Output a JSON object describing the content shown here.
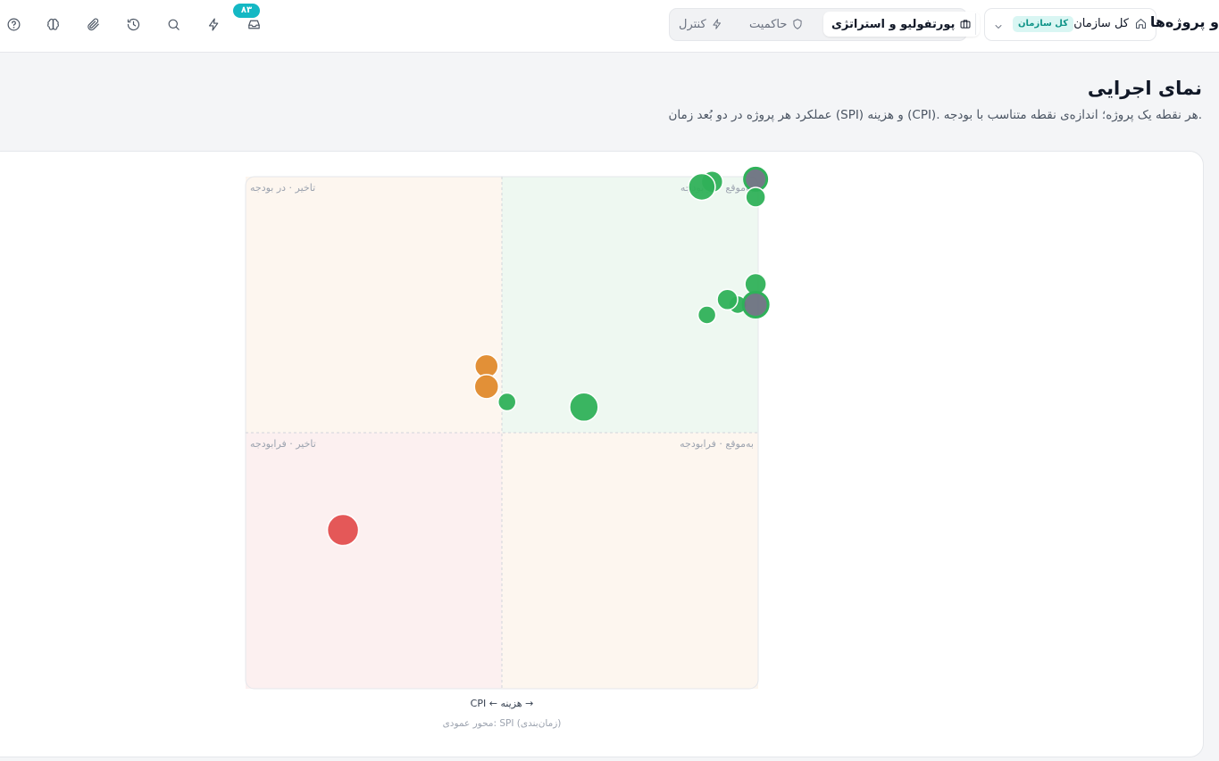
{
  "topbar": {
    "title": "و پروژه‌ها",
    "org_select": {
      "label": "کل سازمان",
      "chip": "کل سازمان"
    },
    "tabs": [
      {
        "label": "پورتفولیو و استراتژی",
        "icon": "briefcase-icon",
        "active": true
      },
      {
        "label": "حاکمیت",
        "icon": "shield-icon",
        "active": false
      },
      {
        "label": "کنترل",
        "icon": "bolt-icon",
        "active": false
      }
    ],
    "icons": [
      "inbox-icon",
      "bolt-icon",
      "search-icon",
      "history-icon",
      "paperclip-icon",
      "brain-icon",
      "help-icon"
    ],
    "inbox_badge": "۸۳"
  },
  "page": {
    "title": "نمای اجرایی",
    "subtitle": "عملکرد هر پروژه در دو بُعد زمان (SPI) و هزینه (CPI). هر نقطه یک پروژه؛ اندازه‌ی نقطه متناسب با بودجه."
  },
  "chart_data": {
    "type": "scatter",
    "quadrants": {
      "top_right": "به‌موقع · در بودجه",
      "top_left": "تاخیر · در بودجه",
      "bottom_right": "به‌موقع · فرابودجه",
      "bottom_left": "تاخیر · فرابودجه"
    },
    "xlabel": "→ هزینه ← CPI",
    "y_note": "(زمان‌بندی) SPI :محور عمودی",
    "colors": {
      "green": "#2fb159",
      "orange": "#e08a2c",
      "red": "#e34f4f",
      "grey": "#6b7280"
    },
    "points": [
      {
        "x": 0.91,
        "y": 0.99,
        "size": 0.7,
        "color": "green"
      },
      {
        "x": 0.89,
        "y": 0.98,
        "size": 1.0,
        "color": "green"
      },
      {
        "x": 0.995,
        "y": 0.995,
        "size": 0.75,
        "color": "grey"
      },
      {
        "x": 0.995,
        "y": 0.96,
        "size": 0.6,
        "color": "green"
      },
      {
        "x": 0.995,
        "y": 0.79,
        "size": 0.7,
        "color": "green"
      },
      {
        "x": 0.96,
        "y": 0.75,
        "size": 0.5,
        "color": "green"
      },
      {
        "x": 0.995,
        "y": 0.75,
        "size": 0.9,
        "color": "grey"
      },
      {
        "x": 0.94,
        "y": 0.76,
        "size": 0.65,
        "color": "green"
      },
      {
        "x": 0.9,
        "y": 0.73,
        "size": 0.5,
        "color": "green"
      },
      {
        "x": 0.47,
        "y": 0.63,
        "size": 0.8,
        "color": "orange"
      },
      {
        "x": 0.47,
        "y": 0.59,
        "size": 0.85,
        "color": "orange"
      },
      {
        "x": 0.51,
        "y": 0.56,
        "size": 0.5,
        "color": "green"
      },
      {
        "x": 0.66,
        "y": 0.55,
        "size": 1.1,
        "color": "green"
      },
      {
        "x": 0.19,
        "y": 0.31,
        "size": 1.25,
        "color": "red"
      }
    ]
  }
}
